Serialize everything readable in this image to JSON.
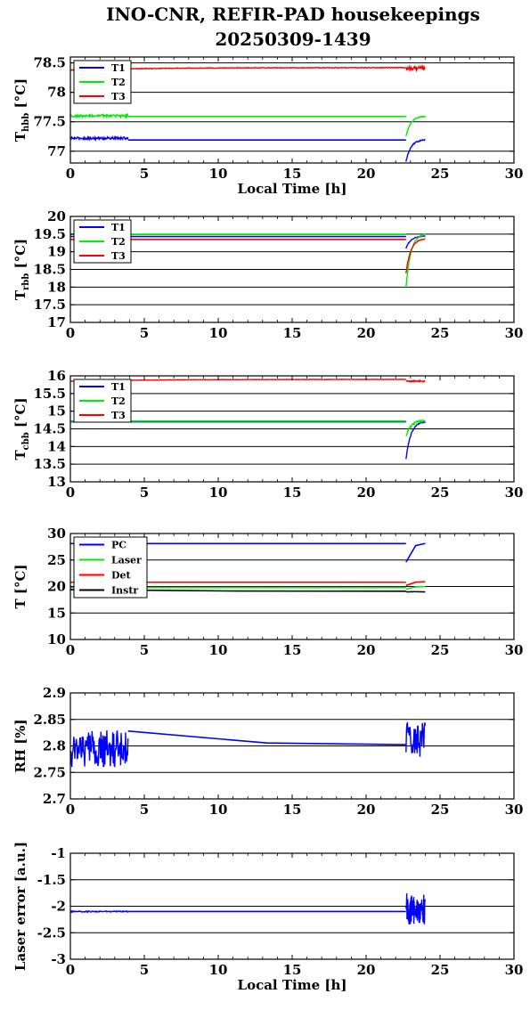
{
  "title_line1": "INO-CNR, REFIR-PAD housekeepings",
  "title_line2": "20250309-1439",
  "colors": {
    "blue": "#0000ff",
    "green": "#00ee00",
    "red": "#ff0000",
    "black": "#000000"
  },
  "chart_data": [
    {
      "type": "line",
      "xlabel": "Local Time [h]",
      "ylabel": {
        "base": "T",
        "sub": "hbb",
        "unit": " [°C]"
      },
      "xlim": [
        0,
        30
      ],
      "ylim": [
        76.8,
        78.6
      ],
      "xticks": [
        "0",
        "5",
        "10",
        "15",
        "20",
        "25",
        "30"
      ],
      "yticks": [
        {
          "v": 77,
          "label": "77"
        },
        {
          "v": 77.5,
          "label": "77.5"
        },
        {
          "v": 78,
          "label": "78"
        },
        {
          "v": 78.5,
          "label": "78.5"
        }
      ],
      "grid": true,
      "legend": "top-left",
      "series": [
        {
          "name": "T1",
          "color": "blue",
          "segments": [
            {
              "x": [
                0,
                3.9
              ],
              "base": 77.22,
              "noise": 0.02
            },
            {
              "x": [
                3.9,
                22.7
              ],
              "base": 77.19,
              "noise": 0
            },
            {
              "x": [
                22.7,
                24
              ],
              "start": 76.82,
              "end": 77.2,
              "noise": 0.01
            }
          ]
        },
        {
          "name": "T2",
          "color": "green",
          "segments": [
            {
              "x": [
                0,
                3.9
              ],
              "base": 77.6,
              "noise": 0.02
            },
            {
              "x": [
                3.9,
                22.7
              ],
              "base": 77.59,
              "noise": 0
            },
            {
              "x": [
                22.7,
                24
              ],
              "start": 77.25,
              "end": 77.6,
              "noise": 0.01
            }
          ]
        },
        {
          "name": "T3",
          "color": "red",
          "segments": [
            {
              "x": [
                0,
                22.7
              ],
              "start": 78.38,
              "end": 78.42,
              "noise": 0.005
            },
            {
              "x": [
                22.7,
                24
              ],
              "base": 78.41,
              "noise": 0.04
            }
          ]
        }
      ]
    },
    {
      "type": "line",
      "xlabel": "",
      "ylabel": {
        "base": "T",
        "sub": "rbb",
        "unit": " [°C]"
      },
      "xlim": [
        0,
        30
      ],
      "ylim": [
        17,
        20
      ],
      "xticks": [
        "0",
        "5",
        "10",
        "15",
        "20",
        "25",
        "30"
      ],
      "yticks": [
        {
          "v": 17,
          "label": "17"
        },
        {
          "v": 17.5,
          "label": "17.5"
        },
        {
          "v": 18,
          "label": "18"
        },
        {
          "v": 18.5,
          "label": "18.5"
        },
        {
          "v": 19,
          "label": "19"
        },
        {
          "v": 19.5,
          "label": "19.5"
        },
        {
          "v": 20,
          "label": "20"
        }
      ],
      "grid": true,
      "legend": "top-left",
      "series": [
        {
          "name": "T1",
          "color": "blue",
          "segments": [
            {
              "x": [
                0,
                22.7
              ],
              "base": 19.43,
              "noise": 0
            },
            {
              "x": [
                22.7,
                24
              ],
              "start": 19.1,
              "end": 19.45,
              "noise": 0.01
            }
          ]
        },
        {
          "name": "T2",
          "color": "green",
          "segments": [
            {
              "x": [
                0,
                22.7
              ],
              "base": 19.49,
              "noise": 0
            },
            {
              "x": [
                22.7,
                24
              ],
              "start": 18.0,
              "end": 19.52,
              "noise": 0.01
            }
          ]
        },
        {
          "name": "T3",
          "color": "red",
          "segments": [
            {
              "x": [
                0,
                22.7
              ],
              "base": 19.35,
              "noise": 0
            },
            {
              "x": [
                22.7,
                24
              ],
              "start": 18.4,
              "end": 19.38,
              "noise": 0.01
            }
          ]
        }
      ]
    },
    {
      "type": "line",
      "xlabel": "",
      "ylabel": {
        "base": "T",
        "sub": "cbb",
        "unit": " [°C]"
      },
      "xlim": [
        0,
        30
      ],
      "ylim": [
        13,
        16
      ],
      "xticks": [
        "0",
        "5",
        "10",
        "15",
        "20",
        "25",
        "30"
      ],
      "yticks": [
        {
          "v": 13,
          "label": "13"
        },
        {
          "v": 13.5,
          "label": "13.5"
        },
        {
          "v": 14,
          "label": "14"
        },
        {
          "v": 14.5,
          "label": "14.5"
        },
        {
          "v": 15,
          "label": "15"
        },
        {
          "v": 15.5,
          "label": "15.5"
        },
        {
          "v": 16,
          "label": "16"
        }
      ],
      "grid": true,
      "legend": "top-left",
      "series": [
        {
          "name": "T1",
          "color": "blue",
          "segments": [
            {
              "x": [
                0,
                22.7
              ],
              "base": 14.7,
              "noise": 0
            },
            {
              "x": [
                22.7,
                24
              ],
              "start": 13.65,
              "end": 14.72,
              "noise": 0.02
            }
          ]
        },
        {
          "name": "T2",
          "color": "green",
          "segments": [
            {
              "x": [
                0,
                22.7
              ],
              "base": 14.72,
              "noise": 0
            },
            {
              "x": [
                22.7,
                24
              ],
              "start": 14.3,
              "end": 14.74,
              "noise": 0.03
            }
          ]
        },
        {
          "name": "T3",
          "color": "red",
          "segments": [
            {
              "x": [
                0,
                22.7
              ],
              "start": 15.85,
              "end": 15.9,
              "noise": 0.005
            },
            {
              "x": [
                22.7,
                24
              ],
              "base": 15.85,
              "noise": 0.02
            }
          ]
        }
      ]
    },
    {
      "type": "line",
      "xlabel": "",
      "ylabel": {
        "base": "T [°C]",
        "sub": "",
        "unit": ""
      },
      "xlim": [
        0,
        30
      ],
      "ylim": [
        10,
        30
      ],
      "xticks": [
        "0",
        "5",
        "10",
        "15",
        "20",
        "25",
        "30"
      ],
      "yticks": [
        {
          "v": 10,
          "label": "10"
        },
        {
          "v": 15,
          "label": "15"
        },
        {
          "v": 20,
          "label": "20"
        },
        {
          "v": 25,
          "label": "25"
        },
        {
          "v": 30,
          "label": "30"
        }
      ],
      "grid": true,
      "legend": "top-left",
      "series": [
        {
          "name": "PC",
          "color": "blue",
          "segments": [
            {
              "x": [
                0,
                22.7
              ],
              "base": 28.1,
              "noise": 0
            },
            {
              "x": [
                22.7,
                24
              ],
              "start": 24.6,
              "end": 28.2,
              "noise": 0
            }
          ]
        },
        {
          "name": "Laser",
          "color": "green",
          "segments": [
            {
              "x": [
                0,
                22.7
              ],
              "base": 19.8,
              "noise": 0
            },
            {
              "x": [
                22.7,
                24
              ],
              "start": 19.5,
              "end": 20.0,
              "noise": 0
            }
          ]
        },
        {
          "name": "Det",
          "color": "red",
          "segments": [
            {
              "x": [
                0,
                22.7
              ],
              "base": 20.8,
              "noise": 0
            },
            {
              "x": [
                22.7,
                24
              ],
              "start": 20.2,
              "end": 20.9,
              "noise": 0
            }
          ]
        },
        {
          "name": "Instr",
          "color": "black",
          "segments": [
            {
              "x": [
                0,
                22.7
              ],
              "start": 19.4,
              "end": 19.1,
              "noise": 0
            },
            {
              "x": [
                22.7,
                24
              ],
              "base": 19.0,
              "noise": 0.05
            }
          ]
        }
      ]
    },
    {
      "type": "line",
      "xlabel": "",
      "ylabel": {
        "base": "RH [%]",
        "sub": "",
        "unit": ""
      },
      "xlim": [
        0,
        30
      ],
      "ylim": [
        2.7,
        2.9
      ],
      "xticks": [
        "0",
        "5",
        "10",
        "15",
        "20",
        "25",
        "30"
      ],
      "yticks": [
        {
          "v": 2.7,
          "label": "2.7"
        },
        {
          "v": 2.75,
          "label": "2.75"
        },
        {
          "v": 2.8,
          "label": "2.8"
        },
        {
          "v": 2.85,
          "label": "2.85"
        },
        {
          "v": 2.9,
          "label": "2.9"
        }
      ],
      "grid": true,
      "legend": "none",
      "series": [
        {
          "name": "",
          "color": "blue",
          "segments": [
            {
              "x": [
                0,
                3.9
              ],
              "base": 2.795,
              "noise": 0.035
            },
            {
              "x": [
                3.9,
                22.7
              ],
              "start": 2.828,
              "end": 2.802,
              "noise": 0
            },
            {
              "x": [
                22.7,
                24
              ],
              "base": 2.81,
              "noise": 0.035
            }
          ]
        }
      ]
    },
    {
      "type": "line",
      "xlabel": "Local Time [h]",
      "ylabel": {
        "base": "Laser error [a.u.]",
        "sub": "",
        "unit": ""
      },
      "xlim": [
        0,
        30
      ],
      "ylim": [
        -3,
        -1
      ],
      "xticks": [
        "0",
        "5",
        "10",
        "15",
        "20",
        "25",
        "30"
      ],
      "yticks": [
        {
          "v": -3,
          "label": "-3"
        },
        {
          "v": -2.5,
          "label": "-2.5"
        },
        {
          "v": -2,
          "label": "-2"
        },
        {
          "v": -1.5,
          "label": "-1.5"
        },
        {
          "v": -1,
          "label": "-1"
        }
      ],
      "grid": true,
      "legend": "none",
      "series": [
        {
          "name": "",
          "color": "blue",
          "segments": [
            {
              "x": [
                0,
                3.9
              ],
              "base": -2.1,
              "noise": 0.01
            },
            {
              "x": [
                3.9,
                22.7
              ],
              "base": -2.1,
              "noise": 0
            },
            {
              "x": [
                22.7,
                24
              ],
              "base": -2.05,
              "noise": 0.3
            }
          ]
        }
      ]
    }
  ]
}
